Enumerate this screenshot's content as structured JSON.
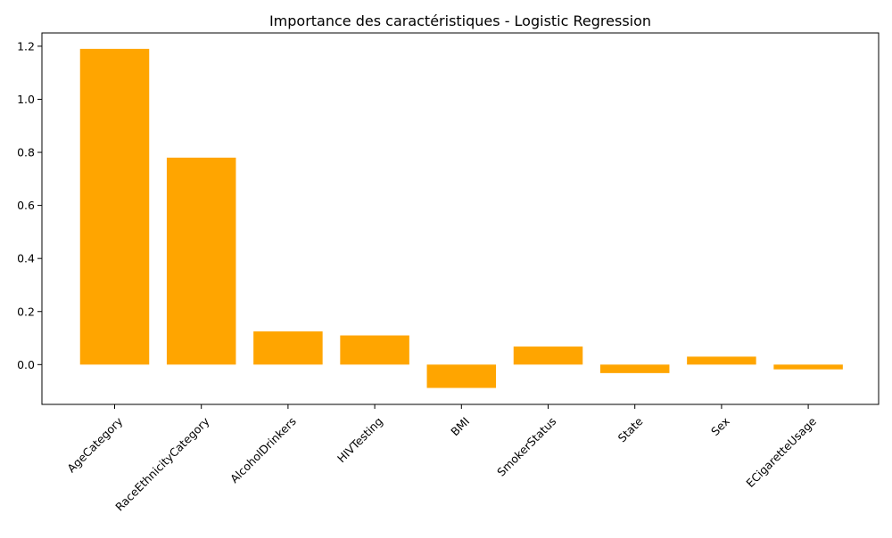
{
  "chart_data": {
    "type": "bar",
    "title": "Importance des caractéristiques - Logistic Regression",
    "xlabel": "",
    "ylabel": "",
    "categories": [
      "AgeCategory",
      "RaceEthnicityCategory",
      "AlcoholDrinkers",
      "HIVTesting",
      "BMI",
      "SmokerStatus",
      "State",
      "Sex",
      "ECigaretteUsage"
    ],
    "values": [
      1.19,
      0.78,
      0.125,
      0.11,
      -0.088,
      0.068,
      -0.032,
      0.03,
      -0.018
    ],
    "ylim": [
      -0.15,
      1.25
    ],
    "yticks": [
      0.0,
      0.2,
      0.4,
      0.6,
      0.8,
      1.0,
      1.2
    ],
    "ytick_labels": [
      "0.0",
      "0.2",
      "0.4",
      "0.6",
      "0.8",
      "1.0",
      "1.2"
    ],
    "bar_color": "#ffa500",
    "grid": false
  }
}
